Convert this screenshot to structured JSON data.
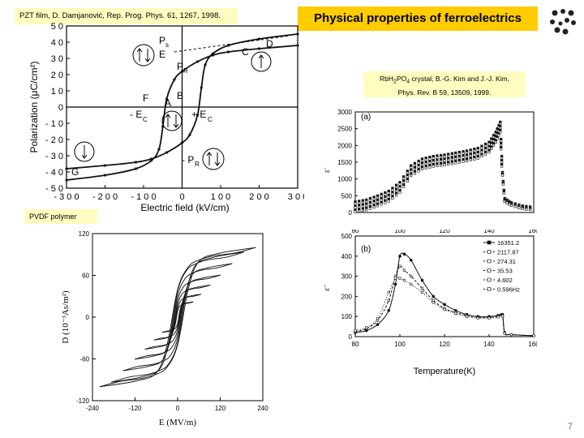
{
  "slide": {
    "title": "Physical properties of ferroelectrics",
    "page_number": "7",
    "logo_icon": "dot-cluster-logo"
  },
  "captions": {
    "pzt": "PZT film, D. Damjanović, Rep. Prog. Phys. 61, 1267, 1998.",
    "rb_line1_pre": "RbH",
    "rb_sub1": "2",
    "rb_line1_mid": "PO",
    "rb_sub2": "4",
    "rb_line1_post": " crystal, B.-G. Kim and J.-J. Kim,",
    "rb_line2": "Phys. Rev. B 59, 13509, 1999.",
    "pvdf": "PVDF polymer"
  },
  "chart_data": [
    {
      "type": "line",
      "xlabel": "Electric field (kV/cm)",
      "ylabel": "Polarization (μC/cm²)",
      "xlim": [
        -300,
        300
      ],
      "ylim": [
        -50,
        50
      ],
      "x_ticks": [
        "- 3 0 0",
        "- 2 0 0",
        "- 1 0 0",
        "0",
        "1 0 0",
        "2 0 0",
        "3 0 0"
      ],
      "y_ticks": [
        "5 0",
        "4 0",
        "3 0",
        "2 0",
        "1 0",
        "0",
        "- 1 0",
        "- 2 0",
        "- 3 0",
        "- 4 0",
        "- 5 0"
      ],
      "point_labels": [
        "P",
        "s",
        "E",
        "P",
        "R",
        "D",
        "C",
        "F",
        "B",
        "A",
        "- E",
        "C",
        "+ E",
        "C",
        "- P",
        "R",
        "G"
      ],
      "series": [
        {
          "x": [
            -300,
            -200,
            -120,
            -80,
            -60,
            -50,
            -40,
            -20,
            0,
            40,
            80,
            120,
            200,
            300
          ],
          "y": [
            -45,
            -42,
            -38,
            -33,
            -26,
            -12,
            5,
            17,
            22,
            28,
            32,
            34,
            36,
            38
          ]
        },
        {
          "x": [
            300,
            200,
            120,
            80,
            60,
            50,
            40,
            20,
            0,
            -40,
            -80,
            -120,
            -200,
            -300
          ],
          "y": [
            45,
            42,
            38,
            33,
            26,
            12,
            -5,
            -17,
            -22,
            -28,
            -32,
            -34,
            -36,
            -38
          ]
        }
      ]
    },
    {
      "type": "line",
      "panel_label": "(a)",
      "ylabel": "ε'",
      "xlim": [
        80,
        160
      ],
      "ylim": [
        0,
        3000
      ],
      "x_ticks": [
        "80",
        "100",
        "120",
        "140",
        "160"
      ],
      "y_ticks": [
        "3000",
        "2500",
        "2000",
        "1500",
        "1000",
        "500",
        "0"
      ],
      "series": [
        {
          "x": [
            80,
            85,
            90,
            95,
            100,
            105,
            110,
            115,
            120,
            125,
            130,
            135,
            140,
            143,
            145,
            146,
            147,
            150,
            155,
            160
          ],
          "y": [
            320,
            380,
            500,
            640,
            900,
            1400,
            1600,
            1680,
            1720,
            1780,
            1840,
            1920,
            2100,
            2400,
            2700,
            1200,
            420,
            300,
            200,
            160
          ]
        }
      ]
    },
    {
      "type": "line",
      "panel_label": "(b)",
      "xlabel": "Temperature(K)",
      "ylabel": "ε''",
      "xlim": [
        80,
        160
      ],
      "ylim": [
        0,
        500
      ],
      "x_ticks": [
        "80",
        "100",
        "120",
        "140",
        "160"
      ],
      "y_ticks": [
        "500",
        "400",
        "300",
        "200",
        "100",
        "0"
      ],
      "legend": [
        "16351.2",
        "2117.87",
        "274.31",
        "35.53",
        "4.602",
        "0.596Hz"
      ],
      "series": [
        {
          "name": "16351.2",
          "x": [
            80,
            85,
            90,
            95,
            98,
            100,
            102,
            105,
            110,
            115,
            120,
            125,
            130,
            135,
            140,
            144,
            146,
            147,
            150,
            160
          ],
          "y": [
            20,
            30,
            60,
            130,
            260,
            400,
            410,
            380,
            280,
            200,
            160,
            130,
            110,
            100,
            100,
            105,
            110,
            20,
            10,
            5
          ]
        },
        {
          "name": "2117.87",
          "x": [
            80,
            85,
            90,
            95,
            98,
            100,
            102,
            105,
            110,
            115,
            120,
            125,
            130,
            135,
            140,
            144,
            146,
            147,
            150,
            160
          ],
          "y": [
            25,
            40,
            80,
            180,
            300,
            350,
            330,
            300,
            240,
            180,
            140,
            120,
            105,
            95,
            95,
            100,
            105,
            18,
            10,
            5
          ]
        },
        {
          "name": "274.31",
          "x": [
            80,
            85,
            90,
            95,
            98,
            100,
            102,
            105,
            110,
            115,
            120,
            125,
            130,
            135,
            140,
            144,
            146,
            147,
            150,
            160
          ],
          "y": [
            30,
            45,
            90,
            220,
            290,
            290,
            280,
            260,
            220,
            170,
            135,
            115,
            100,
            92,
            92,
            98,
            102,
            16,
            10,
            5
          ]
        }
      ]
    },
    {
      "type": "line",
      "xlabel": "E (MV/m)",
      "ylabel": "D (10⁻³As/m²)",
      "xlim": [
        -240,
        240
      ],
      "ylim": [
        -120,
        120
      ],
      "x_ticks": [
        "-240",
        "-120",
        "0",
        "120",
        "240"
      ],
      "y_ticks": [
        "120",
        "60",
        "0",
        "-60",
        "-120"
      ],
      "series": [
        {
          "x": [
            -220,
            -120,
            -60,
            -30,
            0,
            30,
            60,
            100,
            160,
            220
          ],
          "y": [
            -100,
            -92,
            -80,
            -40,
            40,
            72,
            82,
            88,
            92,
            100
          ]
        },
        {
          "x": [
            220,
            120,
            60,
            30,
            0,
            -30,
            -60,
            -100,
            -160,
            -220
          ],
          "y": [
            100,
            92,
            80,
            40,
            -40,
            -72,
            -82,
            -88,
            -92,
            -100
          ]
        }
      ]
    }
  ]
}
